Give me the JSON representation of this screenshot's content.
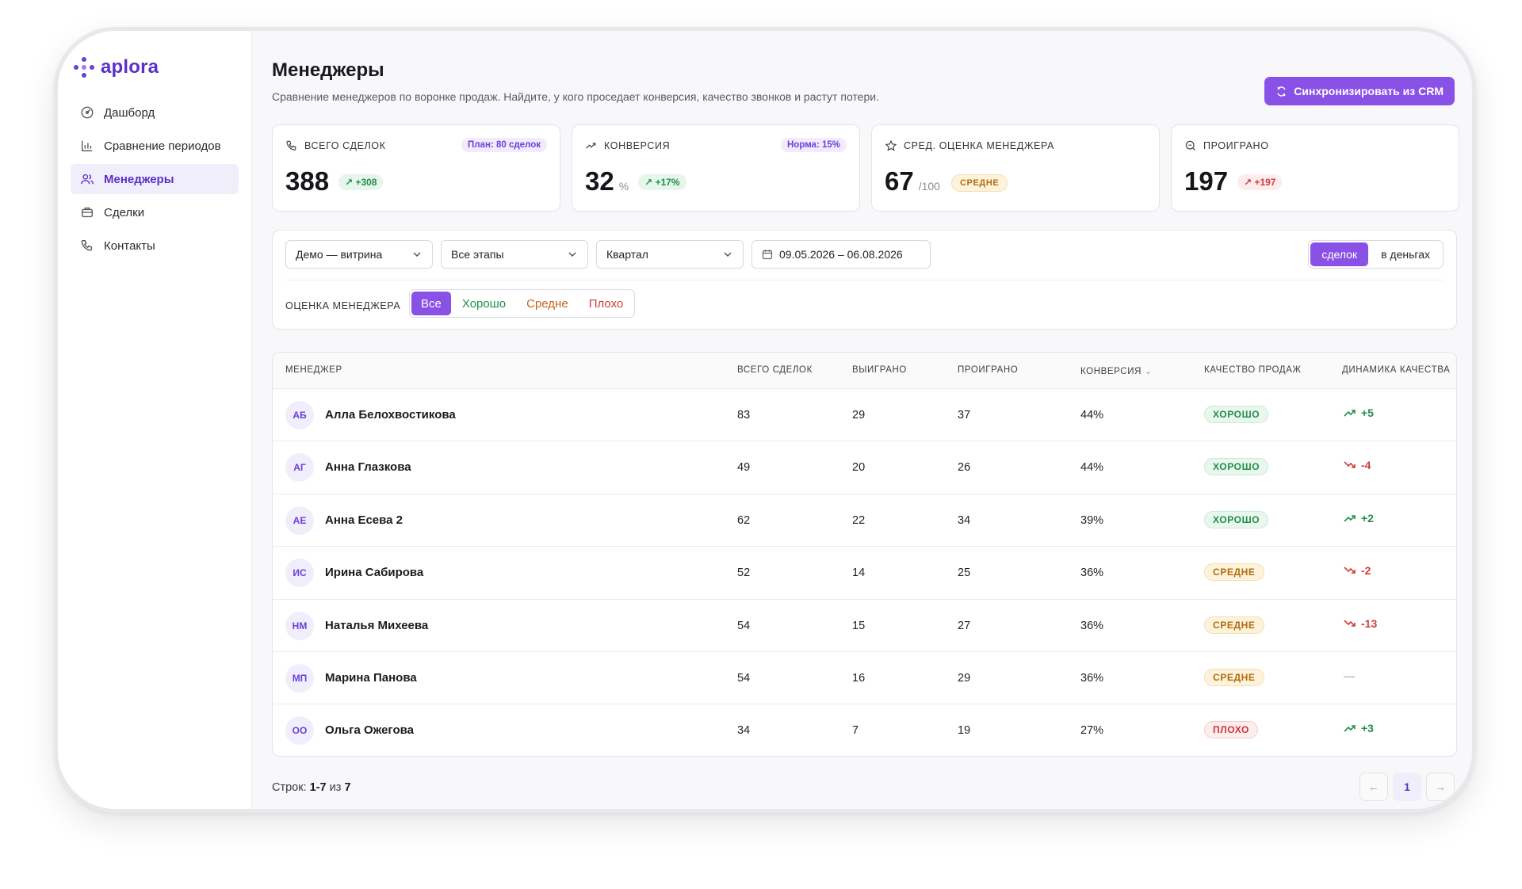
{
  "brand": {
    "name": "aplora",
    "accent": "#8a51e6"
  },
  "nav": [
    {
      "label": "Дашборд",
      "icon": "dashboard-icon",
      "active": false
    },
    {
      "label": "Сравнение периодов",
      "icon": "bar-chart-icon",
      "active": false
    },
    {
      "label": "Менеджеры",
      "icon": "users-icon",
      "active": true
    },
    {
      "label": "Сделки",
      "icon": "briefcase-icon",
      "active": false
    },
    {
      "label": "Контакты",
      "icon": "phone-icon",
      "active": false
    }
  ],
  "page": {
    "title": "Менеджеры",
    "subtitle": "Сравнение менеджеров по воронке продаж. Найдите, у кого проседает конверсия, качество звонков и растут потери.",
    "sync_label": "Синхронизировать из CRM"
  },
  "kpis": {
    "deals": {
      "label": "ВСЕГО СДЕЛОК",
      "tag": "План: 80 сделок",
      "value": "388",
      "delta": "+308"
    },
    "conversion": {
      "label": "КОНВЕРСИЯ",
      "tag": "Норма: 15%",
      "value": "32",
      "unit": "%",
      "delta": "+17%"
    },
    "score": {
      "label": "СРЕД. ОЦЕНКА МЕНЕДЖЕРА",
      "value": "67",
      "unit": "/100",
      "badge": "СРЕДНЕ"
    },
    "lost": {
      "label": "ПРОИГРАНО",
      "value": "197",
      "delta": "+197"
    }
  },
  "filters": {
    "pipeline": "Демо — витрина",
    "stage": "Все этапы",
    "period": "Квартал",
    "date_range": "09.05.2026 – 06.08.2026",
    "mode_options": [
      "сделок",
      "в деньгах"
    ],
    "rating_label": "ОЦЕНКА МЕНЕДЖЕРА",
    "rating_options": [
      "Все",
      "Хорошо",
      "Средне",
      "Плохо"
    ]
  },
  "table": {
    "columns": {
      "manager": "МЕНЕДЖЕР",
      "total": "ВСЕГО СДЕЛОК",
      "won": "ВЫИГРАНО",
      "lost": "ПРОИГРАНО",
      "conversion": "КОНВЕРСИЯ",
      "quality": "КАЧЕСТВО ПРОДАЖ",
      "dynamics": "ДИНАМИКА КАЧЕСТВА"
    },
    "rows": [
      {
        "initials": "АБ",
        "name": "Алла Белохвостикова",
        "total": "83",
        "won": "29",
        "lost": "37",
        "conversion": "44%",
        "quality": "ХОРОШО",
        "quality_level": "good",
        "dynamics": "+5",
        "trend": "up"
      },
      {
        "initials": "АГ",
        "name": "Анна Глазкова",
        "total": "49",
        "won": "20",
        "lost": "26",
        "conversion": "44%",
        "quality": "ХОРОШО",
        "quality_level": "good",
        "dynamics": "-4",
        "trend": "down"
      },
      {
        "initials": "АЕ",
        "name": "Анна Есева 2",
        "total": "62",
        "won": "22",
        "lost": "34",
        "conversion": "39%",
        "quality": "ХОРОШО",
        "quality_level": "good",
        "dynamics": "+2",
        "trend": "up"
      },
      {
        "initials": "ИС",
        "name": "Ирина Сабирова",
        "total": "52",
        "won": "14",
        "lost": "25",
        "conversion": "36%",
        "quality": "СРЕДНЕ",
        "quality_level": "mid",
        "dynamics": "-2",
        "trend": "down"
      },
      {
        "initials": "НМ",
        "name": "Наталья Михеева",
        "total": "54",
        "won": "15",
        "lost": "27",
        "conversion": "36%",
        "quality": "СРЕДНЕ",
        "quality_level": "mid",
        "dynamics": "-13",
        "trend": "down"
      },
      {
        "initials": "МП",
        "name": "Марина Панова",
        "total": "54",
        "won": "16",
        "lost": "29",
        "conversion": "36%",
        "quality": "СРЕДНЕ",
        "quality_level": "mid",
        "dynamics": "—",
        "trend": "none"
      },
      {
        "initials": "ОО",
        "name": "Ольга Ожегова",
        "total": "34",
        "won": "7",
        "lost": "19",
        "conversion": "27%",
        "quality": "ПЛОХО",
        "quality_level": "bad",
        "dynamics": "+3",
        "trend": "up"
      }
    ]
  },
  "footer": {
    "rows_prefix": "Строк:",
    "rows_range": "1-7",
    "rows_of": "из",
    "rows_total": "7",
    "current_page": "1"
  }
}
